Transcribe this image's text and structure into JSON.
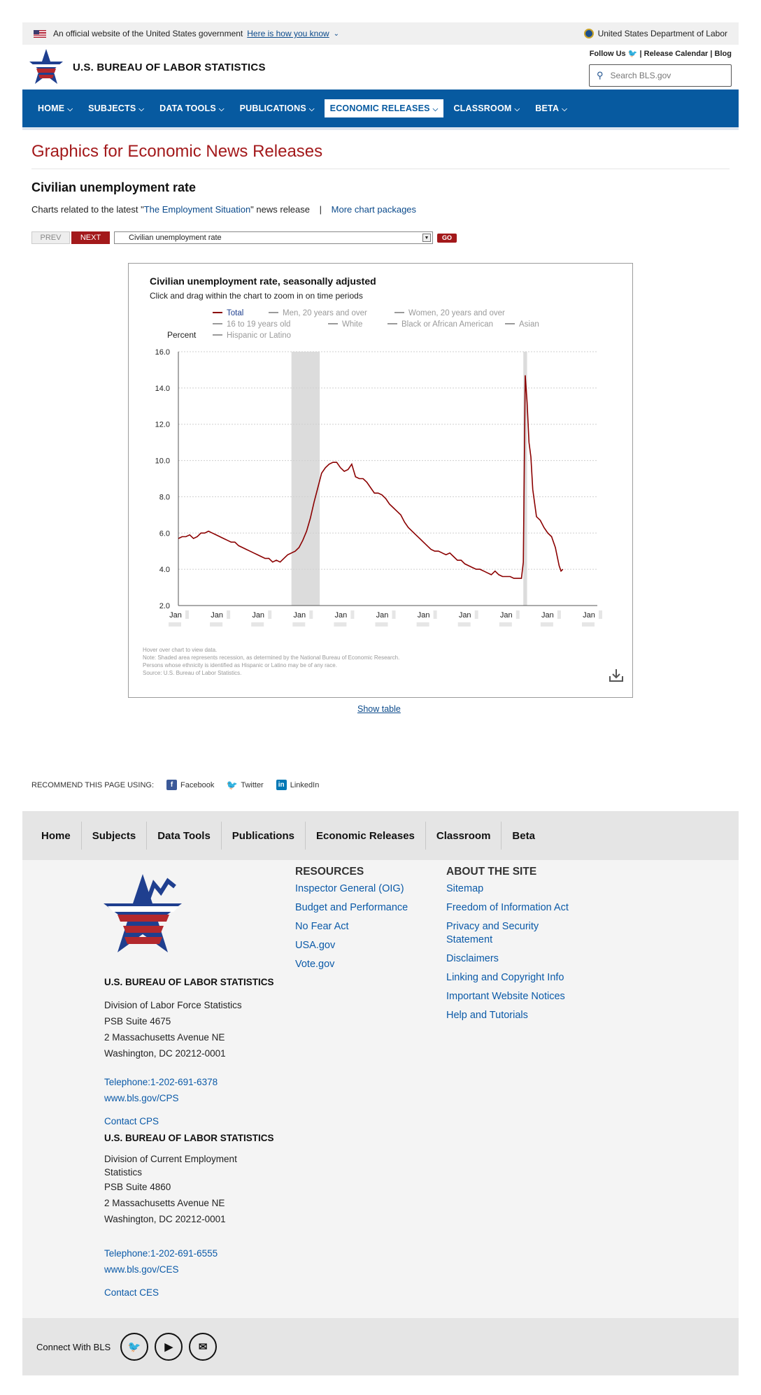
{
  "gov_banner": {
    "official_text": "An official website of the United States government",
    "how_link": "Here is how you know",
    "department": "United States Department of Labor"
  },
  "header": {
    "site_name": "U.S. BUREAU OF LABOR STATISTICS",
    "follow_us": "Follow Us",
    "release_calendar": "Release Calendar",
    "blog": "Blog",
    "search_placeholder": "Search BLS.gov"
  },
  "nav": {
    "items": [
      {
        "label": "HOME"
      },
      {
        "label": "SUBJECTS"
      },
      {
        "label": "DATA TOOLS"
      },
      {
        "label": "PUBLICATIONS"
      },
      {
        "label": "ECONOMIC RELEASES"
      },
      {
        "label": "CLASSROOM"
      },
      {
        "label": "BETA"
      }
    ],
    "active": "ECONOMIC RELEASES"
  },
  "page": {
    "title": "Graphics for Economic News Releases",
    "chart_name": "Civilian unemployment rate",
    "related_prefix": "Charts related to the latest \"",
    "related_link": "The Employment Situation",
    "related_suffix": "\" news release",
    "separator": "|",
    "more_link": "More chart packages"
  },
  "controls": {
    "prev": "PREV",
    "next": "NEXT",
    "select_value": "Civilian unemployment rate",
    "go": "GO"
  },
  "chart": {
    "title": "Civilian unemployment rate, seasonally adjusted",
    "subtitle": "Click and drag within the chart to zoom in on time periods",
    "y_unit": "Percent",
    "notes": [
      "Hover over chart to view data.",
      "Note: Shaded area represents recession, as determined by the National Bureau of Economic Research.",
      "Persons whose ethnicity is identified as Hispanic or Latino may be of any race.",
      "Source: U.S. Bureau of Labor Statistics."
    ],
    "show_table": "Show table"
  },
  "chart_data": {
    "type": "line",
    "title": "Civilian unemployment rate, seasonally adjusted",
    "ylabel": "Percent",
    "ylim": [
      2.0,
      16.0
    ],
    "yticks": [
      "16.0",
      "14.0",
      "12.0",
      "10.0",
      "8.0",
      "6.0",
      "4.0",
      "2.0"
    ],
    "xticks": [
      "Jan",
      "Jan",
      "Jan",
      "Jan",
      "Jan",
      "Jan",
      "Jan",
      "Jan",
      "Jan",
      "Jan",
      "Jan"
    ],
    "grid": true,
    "legend_position": "top",
    "legend": [
      {
        "name": "Total",
        "color": "#8b0000",
        "active": true
      },
      {
        "name": "Men, 20 years and over",
        "color": "#999999",
        "active": false
      },
      {
        "name": "Women, 20 years and over",
        "color": "#999999",
        "active": false
      },
      {
        "name": "16 to 19 years old",
        "color": "#999999",
        "active": false
      },
      {
        "name": "White",
        "color": "#999999",
        "active": false
      },
      {
        "name": "Black or African American",
        "color": "#999999",
        "active": false
      },
      {
        "name": "Asian",
        "color": "#999999",
        "active": false
      },
      {
        "name": "Hispanic or Latino",
        "color": "#999999",
        "active": false
      }
    ],
    "x_range": [
      0,
      10
    ],
    "recession_bands": [
      [
        3.0,
        3.75
      ],
      [
        9.15,
        9.25
      ]
    ],
    "series": [
      {
        "name": "Total",
        "color": "#8b0000",
        "points": [
          [
            0.0,
            5.7
          ],
          [
            0.1,
            5.8
          ],
          [
            0.2,
            5.8
          ],
          [
            0.3,
            5.9
          ],
          [
            0.4,
            5.7
          ],
          [
            0.5,
            5.8
          ],
          [
            0.6,
            6.0
          ],
          [
            0.7,
            6.0
          ],
          [
            0.8,
            6.1
          ],
          [
            0.9,
            6.0
          ],
          [
            1.0,
            5.9
          ],
          [
            1.1,
            5.8
          ],
          [
            1.2,
            5.7
          ],
          [
            1.3,
            5.6
          ],
          [
            1.4,
            5.5
          ],
          [
            1.5,
            5.5
          ],
          [
            1.6,
            5.3
          ],
          [
            1.7,
            5.2
          ],
          [
            1.8,
            5.1
          ],
          [
            1.9,
            5.0
          ],
          [
            2.0,
            4.9
          ],
          [
            2.1,
            4.8
          ],
          [
            2.2,
            4.7
          ],
          [
            2.3,
            4.6
          ],
          [
            2.4,
            4.6
          ],
          [
            2.5,
            4.4
          ],
          [
            2.6,
            4.5
          ],
          [
            2.7,
            4.4
          ],
          [
            2.8,
            4.6
          ],
          [
            2.9,
            4.8
          ],
          [
            3.0,
            4.9
          ],
          [
            3.1,
            5.0
          ],
          [
            3.2,
            5.2
          ],
          [
            3.3,
            5.6
          ],
          [
            3.4,
            6.1
          ],
          [
            3.5,
            6.8
          ],
          [
            3.6,
            7.7
          ],
          [
            3.7,
            8.5
          ],
          [
            3.8,
            9.3
          ],
          [
            3.9,
            9.6
          ],
          [
            4.0,
            9.8
          ],
          [
            4.1,
            9.9
          ],
          [
            4.2,
            9.9
          ],
          [
            4.3,
            9.6
          ],
          [
            4.4,
            9.4
          ],
          [
            4.5,
            9.5
          ],
          [
            4.6,
            9.8
          ],
          [
            4.7,
            9.1
          ],
          [
            4.8,
            9.0
          ],
          [
            4.9,
            9.0
          ],
          [
            5.0,
            8.8
          ],
          [
            5.1,
            8.5
          ],
          [
            5.2,
            8.2
          ],
          [
            5.3,
            8.2
          ],
          [
            5.4,
            8.1
          ],
          [
            5.5,
            7.9
          ],
          [
            5.6,
            7.6
          ],
          [
            5.7,
            7.4
          ],
          [
            5.8,
            7.2
          ],
          [
            5.9,
            7.0
          ],
          [
            6.0,
            6.6
          ],
          [
            6.1,
            6.3
          ],
          [
            6.2,
            6.1
          ],
          [
            6.3,
            5.9
          ],
          [
            6.4,
            5.7
          ],
          [
            6.5,
            5.5
          ],
          [
            6.6,
            5.3
          ],
          [
            6.7,
            5.1
          ],
          [
            6.8,
            5.0
          ],
          [
            6.9,
            5.0
          ],
          [
            7.0,
            4.9
          ],
          [
            7.1,
            4.8
          ],
          [
            7.2,
            4.9
          ],
          [
            7.3,
            4.7
          ],
          [
            7.4,
            4.5
          ],
          [
            7.5,
            4.5
          ],
          [
            7.6,
            4.3
          ],
          [
            7.7,
            4.2
          ],
          [
            7.8,
            4.1
          ],
          [
            7.9,
            4.0
          ],
          [
            8.0,
            4.0
          ],
          [
            8.1,
            3.9
          ],
          [
            8.2,
            3.8
          ],
          [
            8.3,
            3.7
          ],
          [
            8.4,
            3.9
          ],
          [
            8.5,
            3.7
          ],
          [
            8.6,
            3.6
          ],
          [
            8.7,
            3.6
          ],
          [
            8.8,
            3.6
          ],
          [
            8.9,
            3.5
          ],
          [
            9.0,
            3.5
          ],
          [
            9.1,
            3.5
          ],
          [
            9.15,
            4.4
          ],
          [
            9.2,
            14.7
          ],
          [
            9.25,
            13.2
          ],
          [
            9.3,
            11.0
          ],
          [
            9.35,
            10.2
          ],
          [
            9.4,
            8.4
          ],
          [
            9.5,
            6.9
          ],
          [
            9.6,
            6.7
          ],
          [
            9.7,
            6.3
          ],
          [
            9.8,
            6.0
          ],
          [
            9.9,
            5.8
          ],
          [
            10.0,
            5.2
          ],
          [
            10.05,
            4.7
          ],
          [
            10.1,
            4.2
          ],
          [
            10.15,
            3.9
          ],
          [
            10.2,
            4.0
          ]
        ]
      }
    ]
  },
  "recommend": {
    "label": "RECOMMEND THIS PAGE USING:",
    "facebook": "Facebook",
    "twitter": "Twitter",
    "linkedin": "LinkedIn"
  },
  "footer_nav": [
    "Home",
    "Subjects",
    "Data Tools",
    "Publications",
    "Economic Releases",
    "Classroom",
    "Beta"
  ],
  "footer": {
    "offices": [
      {
        "agency": "U.S. BUREAU OF LABOR STATISTICS",
        "division": "Division of Labor Force Statistics",
        "suite": "PSB Suite 4675",
        "street": "2 Massachusetts Avenue NE",
        "city": "Washington, DC 20212-0001",
        "telephone": "Telephone:1-202-691-6378",
        "url": "www.bls.gov/CPS",
        "contact": "Contact CPS"
      },
      {
        "agency": "U.S. BUREAU OF LABOR STATISTICS",
        "division": "Division of Current Employment Statistics",
        "suite": "PSB Suite 4860",
        "street": "2 Massachusetts Avenue NE",
        "city": "Washington, DC 20212-0001",
        "telephone": "Telephone:1-202-691-6555",
        "url": "www.bls.gov/CES",
        "contact": "Contact CES"
      }
    ],
    "resources_title": "RESOURCES",
    "resources": [
      "Inspector General (OIG)",
      "Budget and Performance",
      "No Fear Act",
      "USA.gov",
      "Vote.gov"
    ],
    "about_title": "ABOUT THE SITE",
    "about": [
      "Sitemap",
      "Freedom of Information Act",
      "Privacy and Security Statement",
      "Disclaimers",
      "Linking and Copyright Info",
      "Important Website Notices",
      "Help and Tutorials"
    ]
  },
  "connect": {
    "label": "Connect With BLS"
  }
}
